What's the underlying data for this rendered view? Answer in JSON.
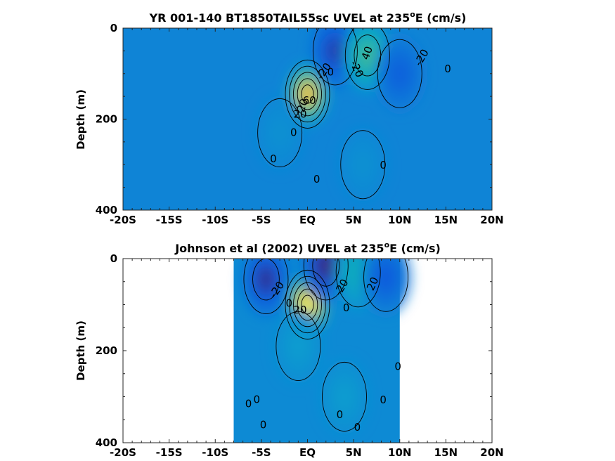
{
  "chart_data": [
    {
      "type": "heatmap",
      "title_prefix": "YR 001-140 BT1850TAIL55sc UVEL at 235",
      "title_sup": "o",
      "title_suffix": "E (cm/s)",
      "xlabel": "",
      "ylabel": "Depth (m)",
      "xlim": [
        -20,
        20
      ],
      "ylim": [
        0,
        400
      ],
      "xticks": [
        -20,
        -15,
        -10,
        -5,
        0,
        5,
        10,
        15,
        20
      ],
      "xtick_labels": [
        "-20S",
        "-15S",
        "-10S",
        "-5S",
        "EQ",
        "5N",
        "10N",
        "15N",
        "20N"
      ],
      "yticks": [
        0,
        200,
        400
      ],
      "ytick_labels": [
        "0",
        "200",
        "400"
      ],
      "coverage_lat": [
        -20,
        20
      ],
      "background": 0,
      "features": [
        {
          "lat": 0,
          "depth": 145,
          "value": 100
        },
        {
          "lat": 3,
          "depth": 50,
          "value": -35
        },
        {
          "lat": 6.5,
          "depth": 60,
          "value": 45
        },
        {
          "lat": 10,
          "depth": 100,
          "value": -22
        },
        {
          "lat": -3,
          "depth": 230,
          "value": 8
        },
        {
          "lat": 6,
          "depth": 300,
          "value": 8
        }
      ],
      "contour_labels": [
        {
          "text": "-20",
          "lat": 1.8,
          "depth": 95,
          "angle": -55
        },
        {
          "text": "0",
          "lat": 2.5,
          "depth": 97,
          "angle": 0
        },
        {
          "text": "-20",
          "lat": 5.3,
          "depth": 90,
          "angle": 65
        },
        {
          "text": "40",
          "lat": 6.5,
          "depth": 55,
          "angle": -70
        },
        {
          "text": "-20",
          "lat": 12.4,
          "depth": 65,
          "angle": -60
        },
        {
          "text": "0",
          "lat": 15.2,
          "depth": 90,
          "angle": 0
        },
        {
          "text": "20",
          "lat": -0.5,
          "depth": 170,
          "angle": -70
        },
        {
          "text": "60",
          "lat": 0.2,
          "depth": 160,
          "angle": 0
        },
        {
          "text": "20",
          "lat": -0.8,
          "depth": 190,
          "angle": 0
        },
        {
          "text": "0",
          "lat": -1.5,
          "depth": 230,
          "angle": 0
        },
        {
          "text": "0",
          "lat": -3.7,
          "depth": 288,
          "angle": 0
        },
        {
          "text": "0",
          "lat": 1,
          "depth": 333,
          "angle": 0
        },
        {
          "text": "0",
          "lat": 8.2,
          "depth": 302,
          "angle": 0
        }
      ]
    },
    {
      "type": "heatmap",
      "title_prefix": "Johnson et al (2002) UVEL at 235",
      "title_sup": "o",
      "title_suffix": "E (cm/s)",
      "xlabel": "",
      "ylabel": "Depth (m)",
      "xlim": [
        -20,
        20
      ],
      "ylim": [
        0,
        400
      ],
      "xticks": [
        -20,
        -15,
        -10,
        -5,
        0,
        5,
        10,
        15,
        20
      ],
      "xtick_labels": [
        "-20S",
        "-15S",
        "-10S",
        "-5S",
        "EQ",
        "5N",
        "10N",
        "15N",
        "20N"
      ],
      "yticks": [
        0,
        200,
        400
      ],
      "ytick_labels": [
        "0",
        "200",
        "400"
      ],
      "coverage_lat": [
        -8,
        10
      ],
      "background": 4,
      "features": [
        {
          "lat": 0,
          "depth": 100,
          "value": 115
        },
        {
          "lat": -4.5,
          "depth": 45,
          "value": -40
        },
        {
          "lat": 2,
          "depth": 15,
          "value": -45
        },
        {
          "lat": 5.5,
          "depth": 30,
          "value": 30
        },
        {
          "lat": 8.5,
          "depth": 40,
          "value": -25
        },
        {
          "lat": -1,
          "depth": 190,
          "value": 15
        },
        {
          "lat": 4,
          "depth": 300,
          "value": 15
        }
      ],
      "contour_labels": [
        {
          "text": "-20",
          "lat": -3.3,
          "depth": 68,
          "angle": -55
        },
        {
          "text": "0",
          "lat": -2,
          "depth": 98,
          "angle": 0
        },
        {
          "text": "20",
          "lat": -0.8,
          "depth": 112,
          "angle": 0
        },
        {
          "text": "-20",
          "lat": 3.7,
          "depth": 63,
          "angle": -60
        },
        {
          "text": "20",
          "lat": 7.1,
          "depth": 55,
          "angle": -65
        },
        {
          "text": "0",
          "lat": 4.2,
          "depth": 108,
          "angle": 0
        },
        {
          "text": "0",
          "lat": 9.8,
          "depth": 235,
          "angle": 0
        },
        {
          "text": "0",
          "lat": -5.5,
          "depth": 307,
          "angle": 0
        },
        {
          "text": "0",
          "lat": -6.4,
          "depth": 316,
          "angle": 0
        },
        {
          "text": "0",
          "lat": -4.8,
          "depth": 362,
          "angle": 0
        },
        {
          "text": "0",
          "lat": 3.5,
          "depth": 340,
          "angle": 0
        },
        {
          "text": "0",
          "lat": 5.4,
          "depth": 367,
          "angle": 0
        },
        {
          "text": "0",
          "lat": 8.2,
          "depth": 308,
          "angle": 0
        }
      ]
    }
  ]
}
